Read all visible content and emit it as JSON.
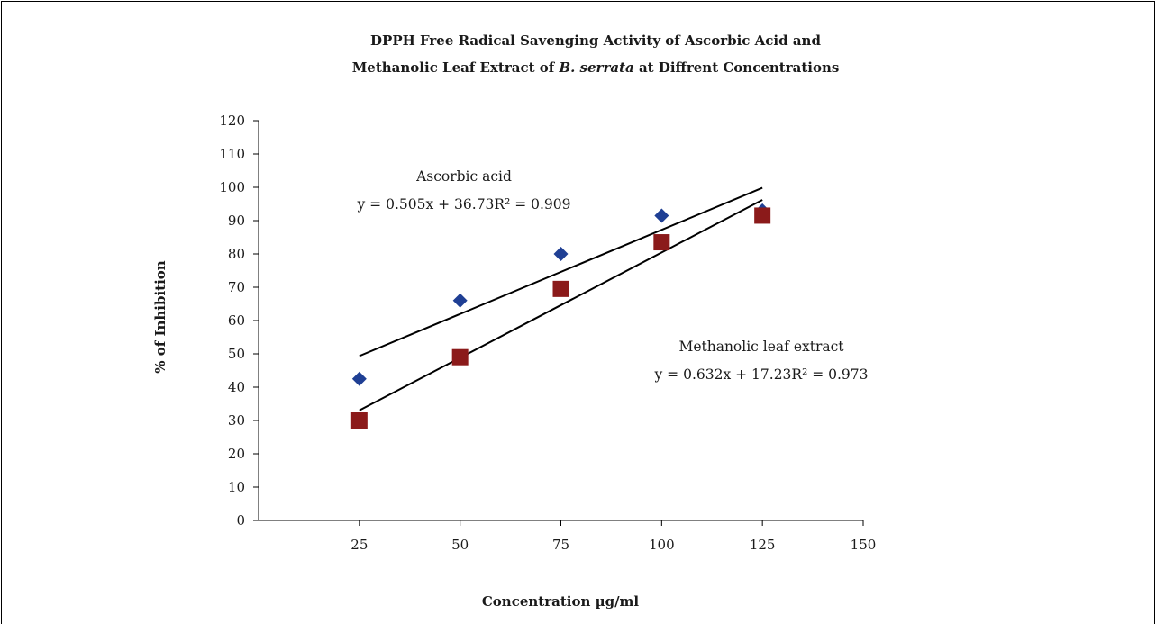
{
  "chart_data": {
    "type": "scatter",
    "title": {
      "line1": "DPPH Free Radical Savenging Activity of Ascorbic Acid and",
      "line2_before": "Methanolic Leaf Extract of ",
      "line2_italic": "B. serrata",
      "line2_after": " at Diffrent Concentrations"
    },
    "xlabel": "Concentration µg/ml",
    "ylabel": "% of Inhibition",
    "xlim": [
      0,
      150
    ],
    "ylim": [
      0,
      120
    ],
    "xticks": [
      25,
      50,
      75,
      100,
      125,
      150
    ],
    "yticks": [
      0,
      10,
      20,
      30,
      40,
      50,
      60,
      70,
      80,
      90,
      100,
      110,
      120
    ],
    "grid": false,
    "series": [
      {
        "name": "Ascorbic acid",
        "marker": "diamond",
        "color": "#1f3f94",
        "x": [
          25,
          50,
          75,
          100,
          125
        ],
        "y": [
          42.5,
          66,
          80,
          91.5,
          93
        ],
        "trendline": {
          "slope": 0.505,
          "intercept": 36.73,
          "x_range": [
            25,
            125
          ]
        },
        "equation": "y = 0.505x + 36.73R² = 0.909"
      },
      {
        "name": "Methanolic leaf extract",
        "marker": "square",
        "color": "#8b1a1a",
        "x": [
          25,
          50,
          75,
          100,
          125
        ],
        "y": [
          30,
          49,
          69.5,
          83.5,
          91.5
        ],
        "trendline": {
          "slope": 0.632,
          "intercept": 17.23,
          "x_range": [
            25,
            125
          ]
        },
        "equation": "y = 0.632x + 17.23R² = 0.973"
      }
    ]
  }
}
